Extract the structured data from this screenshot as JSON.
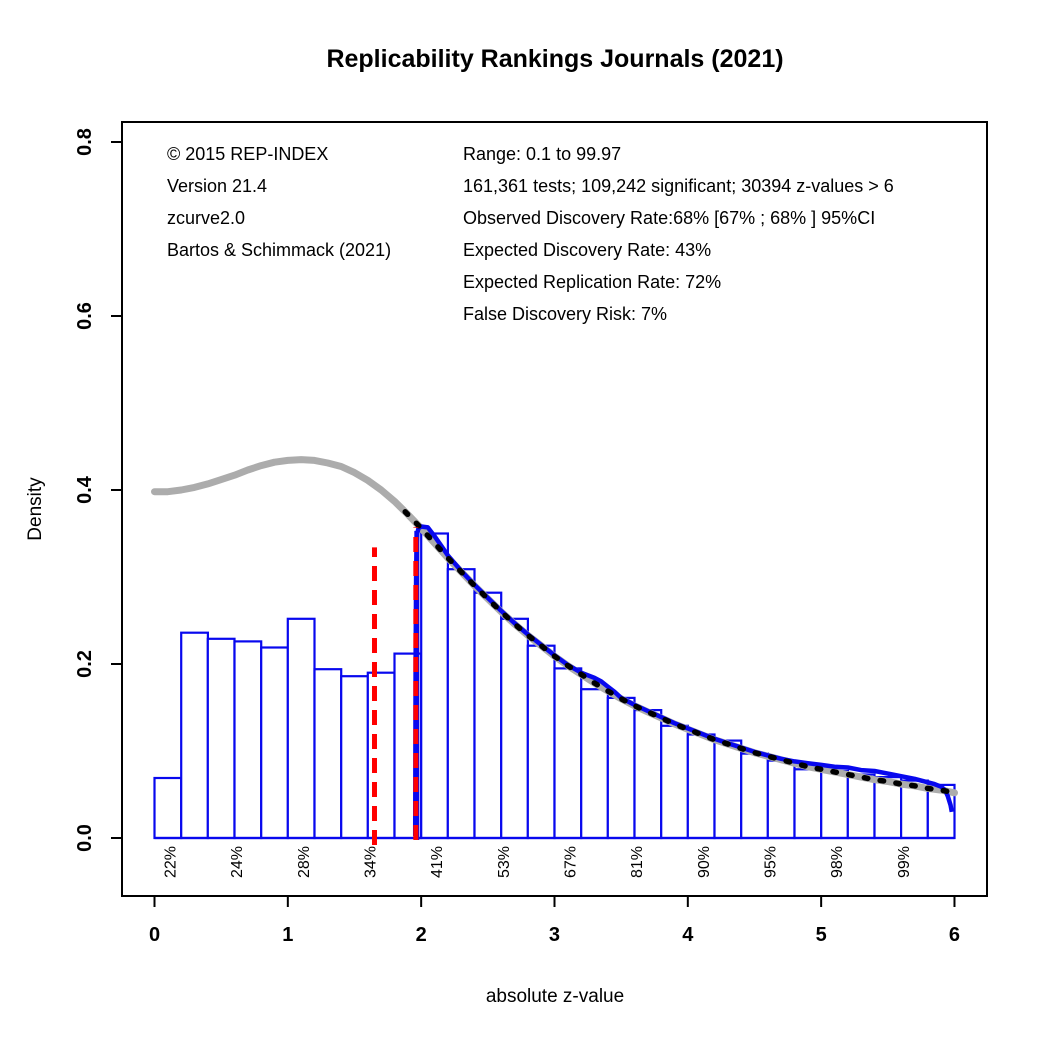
{
  "title": "Replicability Rankings Journals (2021)",
  "annotations": {
    "left": [
      "© 2015 REP-INDEX",
      "Version 21.4",
      "zcurve2.0",
      "Bartos & Schimmack (2021)"
    ],
    "right": [
      "Range: 0.1 to 99.97",
      "161,361 tests; 109,242 significant; 30394 z-values > 6",
      "Observed Discovery Rate:68% [67% ; 68% ] 95%CI",
      "Expected Discovery Rate: 43%",
      "Expected Replication Rate: 72%",
      "False Discovery Risk: 7%"
    ]
  },
  "colors": {
    "histogram": "#0808EE",
    "observed_curve": "#0808EE",
    "model_curve": "#ACACAC",
    "fitted_curve": "#000000",
    "criterion_line": "#FF0000",
    "frame": "#000000",
    "text": "#000000"
  },
  "chart_data": {
    "type": "bar",
    "subtype": "zcurve-histogram-with-curves",
    "title": "Replicability Rankings Journals (2021)",
    "xlabel": "absolute z-value",
    "ylabel": "Density",
    "xlim": [
      0,
      6
    ],
    "ylim": [
      0,
      0.8
    ],
    "xticks": [
      "0",
      "1",
      "2",
      "3",
      "4",
      "5",
      "6"
    ],
    "xtick_values": [
      0,
      1,
      2,
      3,
      4,
      5,
      6
    ],
    "yticks": [
      "0.0",
      "0.2",
      "0.4",
      "0.6",
      "0.8"
    ],
    "ytick_values": [
      0,
      0.2,
      0.4,
      0.6,
      0.8
    ],
    "grid": false,
    "histogram": {
      "bin_start": 0,
      "bin_width": 0.2,
      "heights": [
        0.069,
        0.236,
        0.229,
        0.226,
        0.219,
        0.252,
        0.194,
        0.186,
        0.19,
        0.212,
        0.35,
        0.309,
        0.282,
        0.252,
        0.221,
        0.195,
        0.171,
        0.161,
        0.147,
        0.129,
        0.119,
        0.112,
        0.097,
        0.089,
        0.079,
        0.077,
        0.073,
        0.07,
        0.066,
        0.061
      ]
    },
    "power_labels": [
      {
        "x": 0.12,
        "label": "22%"
      },
      {
        "x": 0.62,
        "label": "24%"
      },
      {
        "x": 1.12,
        "label": "28%"
      },
      {
        "x": 1.62,
        "label": "34%"
      },
      {
        "x": 2.12,
        "label": "41%"
      },
      {
        "x": 2.62,
        "label": "53%"
      },
      {
        "x": 3.12,
        "label": "67%"
      },
      {
        "x": 3.62,
        "label": "81%"
      },
      {
        "x": 4.12,
        "label": "90%"
      },
      {
        "x": 4.62,
        "label": "95%"
      },
      {
        "x": 5.12,
        "label": "98%"
      },
      {
        "x": 5.62,
        "label": "99%"
      }
    ],
    "vlines": [
      {
        "x": 1.65,
        "top": 0.334,
        "style": "dashed",
        "color": "#FF0000"
      },
      {
        "x": 1.96,
        "top": 0.357,
        "style": "dashed-over-blue",
        "color": "#FF0000"
      }
    ],
    "curves": {
      "model": {
        "name": "model-density-gray",
        "width": 7,
        "points": [
          [
            0,
            0.398
          ],
          [
            0.1,
            0.398
          ],
          [
            0.2,
            0.4
          ],
          [
            0.3,
            0.403
          ],
          [
            0.4,
            0.407
          ],
          [
            0.5,
            0.412
          ],
          [
            0.6,
            0.417
          ],
          [
            0.7,
            0.423
          ],
          [
            0.8,
            0.428
          ],
          [
            0.9,
            0.432
          ],
          [
            1.0,
            0.434
          ],
          [
            1.1,
            0.435
          ],
          [
            1.2,
            0.434
          ],
          [
            1.3,
            0.431
          ],
          [
            1.4,
            0.427
          ],
          [
            1.5,
            0.42
          ],
          [
            1.6,
            0.411
          ],
          [
            1.7,
            0.4
          ],
          [
            1.8,
            0.387
          ],
          [
            1.9,
            0.372
          ],
          [
            2.0,
            0.356
          ],
          [
            2.1,
            0.339
          ],
          [
            2.2,
            0.322
          ],
          [
            2.3,
            0.306
          ],
          [
            2.4,
            0.29
          ],
          [
            2.5,
            0.275
          ],
          [
            2.6,
            0.26
          ],
          [
            2.7,
            0.246
          ],
          [
            2.8,
            0.233
          ],
          [
            2.9,
            0.221
          ],
          [
            3.0,
            0.209
          ],
          [
            3.1,
            0.198
          ],
          [
            3.2,
            0.188
          ],
          [
            3.3,
            0.178
          ],
          [
            3.4,
            0.169
          ],
          [
            3.5,
            0.16
          ],
          [
            3.6,
            0.152
          ],
          [
            3.7,
            0.145
          ],
          [
            3.8,
            0.138
          ],
          [
            3.9,
            0.131
          ],
          [
            4.0,
            0.125
          ],
          [
            4.1,
            0.119
          ],
          [
            4.2,
            0.113
          ],
          [
            4.3,
            0.108
          ],
          [
            4.4,
            0.103
          ],
          [
            4.5,
            0.098
          ],
          [
            4.6,
            0.094
          ],
          [
            4.7,
            0.09
          ],
          [
            4.8,
            0.086
          ],
          [
            4.9,
            0.082
          ],
          [
            5.0,
            0.079
          ],
          [
            5.1,
            0.076
          ],
          [
            5.2,
            0.073
          ],
          [
            5.3,
            0.07
          ],
          [
            5.4,
            0.067
          ],
          [
            5.5,
            0.065
          ],
          [
            5.6,
            0.062
          ],
          [
            5.7,
            0.06
          ],
          [
            5.8,
            0.057
          ],
          [
            5.9,
            0.055
          ],
          [
            6.0,
            0.052
          ]
        ]
      },
      "fitted": {
        "name": "fitted-dotted-black",
        "width": 5.5,
        "dash": "3.5 12.5",
        "points": [
          [
            1.88,
            0.375
          ],
          [
            1.9,
            0.372
          ],
          [
            2.0,
            0.356
          ],
          [
            2.1,
            0.339
          ],
          [
            2.2,
            0.322
          ],
          [
            2.3,
            0.306
          ],
          [
            2.4,
            0.29
          ],
          [
            2.5,
            0.275
          ],
          [
            2.6,
            0.26
          ],
          [
            2.7,
            0.246
          ],
          [
            2.8,
            0.233
          ],
          [
            2.9,
            0.221
          ],
          [
            3.0,
            0.209
          ],
          [
            3.1,
            0.198
          ],
          [
            3.2,
            0.188
          ],
          [
            3.3,
            0.178
          ],
          [
            3.4,
            0.169
          ],
          [
            3.5,
            0.16
          ],
          [
            3.6,
            0.152
          ],
          [
            3.7,
            0.145
          ],
          [
            3.8,
            0.138
          ],
          [
            3.9,
            0.131
          ],
          [
            4.0,
            0.125
          ],
          [
            4.1,
            0.119
          ],
          [
            4.2,
            0.113
          ],
          [
            4.3,
            0.108
          ],
          [
            4.4,
            0.103
          ],
          [
            4.5,
            0.098
          ],
          [
            4.6,
            0.094
          ],
          [
            4.7,
            0.09
          ],
          [
            4.8,
            0.086
          ],
          [
            4.9,
            0.082
          ],
          [
            5.0,
            0.079
          ],
          [
            5.1,
            0.076
          ],
          [
            5.2,
            0.073
          ],
          [
            5.3,
            0.07
          ],
          [
            5.4,
            0.067
          ],
          [
            5.5,
            0.065
          ],
          [
            5.6,
            0.062
          ],
          [
            5.7,
            0.06
          ],
          [
            5.8,
            0.057
          ],
          [
            5.9,
            0.055
          ],
          [
            6.0,
            0.052
          ]
        ]
      },
      "observed": {
        "name": "observed-density-blue",
        "width": 4.5,
        "points": [
          [
            1.955,
            0.002
          ],
          [
            1.958,
            0.2
          ],
          [
            1.962,
            0.3
          ],
          [
            1.966,
            0.335
          ],
          [
            1.97,
            0.35
          ],
          [
            1.98,
            0.356
          ],
          [
            2.0,
            0.358
          ],
          [
            2.05,
            0.357
          ],
          [
            2.1,
            0.347
          ],
          [
            2.15,
            0.336
          ],
          [
            2.2,
            0.325
          ],
          [
            2.3,
            0.307
          ],
          [
            2.4,
            0.291
          ],
          [
            2.5,
            0.276
          ],
          [
            2.6,
            0.261
          ],
          [
            2.7,
            0.247
          ],
          [
            2.8,
            0.234
          ],
          [
            2.9,
            0.222
          ],
          [
            3.0,
            0.21
          ],
          [
            3.1,
            0.199
          ],
          [
            3.2,
            0.19
          ],
          [
            3.3,
            0.184
          ],
          [
            3.35,
            0.18
          ],
          [
            3.4,
            0.174
          ],
          [
            3.45,
            0.168
          ],
          [
            3.5,
            0.161
          ],
          [
            3.6,
            0.153
          ],
          [
            3.7,
            0.146
          ],
          [
            3.8,
            0.139
          ],
          [
            3.9,
            0.132
          ],
          [
            4.0,
            0.126
          ],
          [
            4.1,
            0.12
          ],
          [
            4.2,
            0.114
          ],
          [
            4.3,
            0.109
          ],
          [
            4.4,
            0.104
          ],
          [
            4.5,
            0.099
          ],
          [
            4.6,
            0.095
          ],
          [
            4.7,
            0.091
          ],
          [
            4.8,
            0.088
          ],
          [
            4.9,
            0.086
          ],
          [
            5.0,
            0.084
          ],
          [
            5.1,
            0.082
          ],
          [
            5.2,
            0.081
          ],
          [
            5.3,
            0.078
          ],
          [
            5.4,
            0.077
          ],
          [
            5.5,
            0.074
          ],
          [
            5.6,
            0.071
          ],
          [
            5.7,
            0.068
          ],
          [
            5.8,
            0.064
          ],
          [
            5.85,
            0.062
          ],
          [
            5.9,
            0.059
          ],
          [
            5.93,
            0.055
          ],
          [
            5.95,
            0.048
          ],
          [
            5.97,
            0.038
          ],
          [
            5.98,
            0.03
          ]
        ]
      }
    }
  }
}
